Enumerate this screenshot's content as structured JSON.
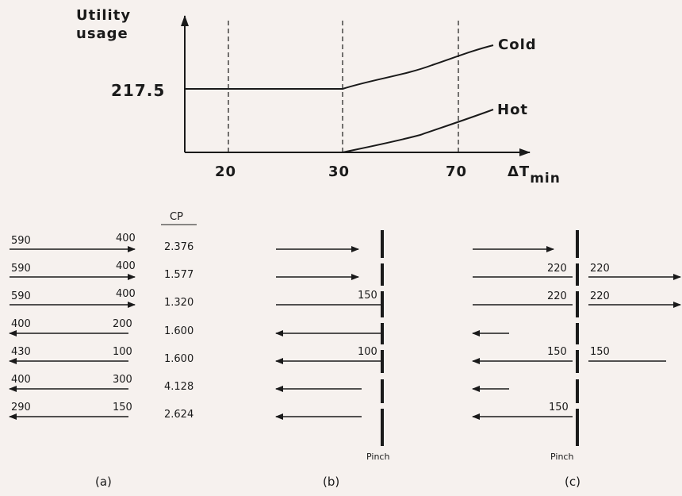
{
  "top_chart": {
    "y_label_line1": "Utility",
    "y_label_line2": "usage",
    "y_value": "217.5",
    "x_ticks": [
      "20",
      "30",
      "70"
    ],
    "x_label_delta": "ΔT",
    "x_label_sub": "min",
    "curve_cold": "Cold",
    "curve_hot": "Hot"
  },
  "panel_a": {
    "cp_header": "CP",
    "caption": "(a)",
    "streams": [
      {
        "left": "590",
        "right": "400",
        "cp": "2.376",
        "dir": "right"
      },
      {
        "left": "590",
        "right": "400",
        "cp": "1.577",
        "dir": "right"
      },
      {
        "left": "590",
        "right": "400",
        "cp": "1.320",
        "dir": "right"
      },
      {
        "left": "400",
        "right": "200",
        "cp": "1.600",
        "dir": "left"
      },
      {
        "left": "430",
        "right": "100",
        "cp": "1.600",
        "dir": "left"
      },
      {
        "left": "400",
        "right": "300",
        "cp": "4.128",
        "dir": "left"
      },
      {
        "left": "290",
        "right": "150",
        "cp": "2.624",
        "dir": "left"
      }
    ]
  },
  "panel_b": {
    "pinch": "Pinch",
    "caption": "(b)",
    "labels": {
      "row3": "150",
      "row5": "100"
    }
  },
  "panel_c": {
    "pinch": "Pinch",
    "caption": "(c)",
    "labels": {
      "row2_left": "220",
      "row2_right": "220",
      "row3_left": "220",
      "row3_right": "220",
      "row5_left": "150",
      "row5_right": "150",
      "row7_left": "150"
    }
  }
}
